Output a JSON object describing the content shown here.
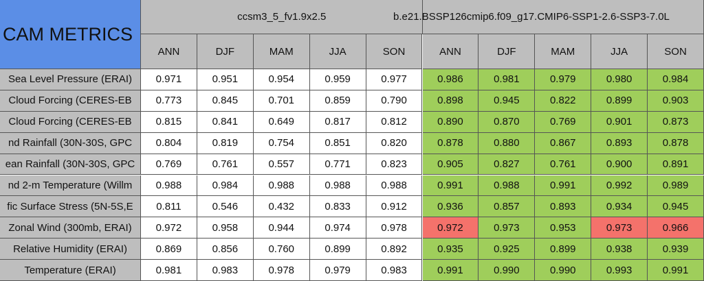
{
  "title": "CAM METRICS",
  "groups": [
    "ccsm3_5_fv1.9x2.5",
    "b.e21.BSSP126cmip6.f09_g17.CMIP6-SSP1-2.6-SSP3-7.0L"
  ],
  "seasons": [
    "ANN",
    "DJF",
    "MAM",
    "JJA",
    "SON",
    "ANN",
    "DJF",
    "MAM",
    "JJA",
    "SON"
  ],
  "rows": [
    {
      "label": "Sea Level Pressure (ERAI)",
      "values": [
        "0.971",
        "0.951",
        "0.954",
        "0.959",
        "0.977",
        "0.986",
        "0.981",
        "0.979",
        "0.980",
        "0.984"
      ],
      "fills": [
        "#9fce5b",
        "#9fce5b",
        "#9fce5b",
        "#9fce5b",
        "#9fce5b"
      ]
    },
    {
      "label": "Cloud Forcing (CERES-EB",
      "values": [
        "0.773",
        "0.845",
        "0.701",
        "0.859",
        "0.790",
        "0.898",
        "0.945",
        "0.822",
        "0.899",
        "0.903"
      ],
      "fills": [
        "#9fce5b",
        "#9fce5b",
        "#9fce5b",
        "#9fce5b",
        "#9fce5b"
      ]
    },
    {
      "label": "Cloud Forcing (CERES-EB",
      "values": [
        "0.815",
        "0.841",
        "0.649",
        "0.817",
        "0.812",
        "0.890",
        "0.870",
        "0.769",
        "0.901",
        "0.873"
      ],
      "fills": [
        "#9fce5b",
        "#9fce5b",
        "#9fce5b",
        "#9fce5b",
        "#9fce5b"
      ]
    },
    {
      "label": "nd Rainfall (30N-30S, GPC",
      "values": [
        "0.804",
        "0.819",
        "0.754",
        "0.851",
        "0.820",
        "0.878",
        "0.880",
        "0.867",
        "0.893",
        "0.878"
      ],
      "fills": [
        "#9fce5b",
        "#9fce5b",
        "#9fce5b",
        "#9fce5b",
        "#9fce5b"
      ]
    },
    {
      "label": "ean Rainfall (30N-30S, GPC",
      "values": [
        "0.769",
        "0.761",
        "0.557",
        "0.771",
        "0.823",
        "0.905",
        "0.827",
        "0.761",
        "0.900",
        "0.891"
      ],
      "fills": [
        "#9fce5b",
        "#9fce5b",
        "#9fce5b",
        "#9fce5b",
        "#9fce5b"
      ]
    },
    {
      "label": "nd 2-m Temperature (Willm",
      "values": [
        "0.988",
        "0.984",
        "0.988",
        "0.988",
        "0.988",
        "0.991",
        "0.988",
        "0.991",
        "0.992",
        "0.989"
      ],
      "fills": [
        "#9fce5b",
        "#9fce5b",
        "#9fce5b",
        "#9fce5b",
        "#9fce5b"
      ]
    },
    {
      "label": "fic Surface Stress (5N-5S,E",
      "values": [
        "0.811",
        "0.546",
        "0.432",
        "0.833",
        "0.912",
        "0.936",
        "0.857",
        "0.893",
        "0.934",
        "0.945"
      ],
      "fills": [
        "#9fce5b",
        "#9fce5b",
        "#9fce5b",
        "#9fce5b",
        "#9fce5b"
      ]
    },
    {
      "label": "Zonal Wind (300mb, ERAI)",
      "values": [
        "0.972",
        "0.958",
        "0.944",
        "0.974",
        "0.978",
        "0.972",
        "0.973",
        "0.953",
        "0.973",
        "0.966"
      ],
      "fills": [
        "#f4726b",
        "#9fce5b",
        "#9fce5b",
        "#f4726b",
        "#f4726b"
      ]
    },
    {
      "label": "Relative Humidity (ERAI)",
      "values": [
        "0.869",
        "0.856",
        "0.760",
        "0.899",
        "0.892",
        "0.935",
        "0.925",
        "0.899",
        "0.938",
        "0.939"
      ],
      "fills": [
        "#9fce5b",
        "#9fce5b",
        "#9fce5b",
        "#9fce5b",
        "#9fce5b"
      ]
    },
    {
      "label": "Temperature (ERAI)",
      "values": [
        "0.981",
        "0.983",
        "0.978",
        "0.979",
        "0.983",
        "0.991",
        "0.990",
        "0.990",
        "0.993",
        "0.991"
      ],
      "fills": [
        "#9fce5b",
        "#9fce5b",
        "#9fce5b",
        "#9fce5b",
        "#9fce5b"
      ]
    }
  ]
}
